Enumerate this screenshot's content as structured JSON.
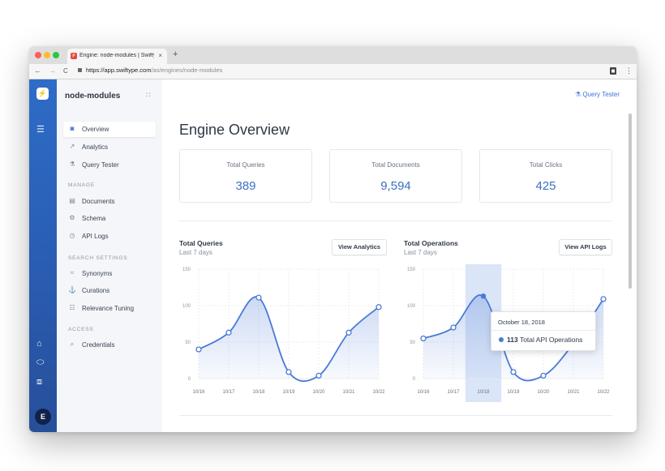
{
  "browser": {
    "tab_title": "Engine: node-modules | Swifty",
    "tab_favicon": "⚡",
    "tab_close": "×",
    "new_tab": "+",
    "back": "←",
    "forward": "→",
    "reload": "C",
    "url_host": "https://app.swiftype.com",
    "url_path": "/as/engines/node-modules",
    "menu": "⋮",
    "traffic_lights": [
      "#fd5f57",
      "#febc2e",
      "#28c840"
    ]
  },
  "rail": {
    "logo": "⚡",
    "menu_icon": "☰",
    "avatar": "E",
    "icons": [
      "home-icon",
      "chat-icon",
      "box-icon"
    ],
    "glyphs": [
      "⌂",
      "⬭",
      "⧈"
    ]
  },
  "sidebar": {
    "title": "node-modules",
    "grid_glyph": "∷",
    "items": [
      {
        "label": "Overview",
        "icon": "binoculars-icon",
        "glyph": "◙",
        "active": true
      },
      {
        "label": "Analytics",
        "icon": "analytics-icon",
        "glyph": "↗",
        "active": false
      },
      {
        "label": "Query Tester",
        "icon": "flask-icon",
        "glyph": "⚗",
        "active": false
      }
    ],
    "section_manage": "MANAGE",
    "manage": [
      {
        "label": "Documents",
        "icon": "table-icon",
        "glyph": "▤"
      },
      {
        "label": "Schema",
        "icon": "gear-icon",
        "glyph": "⚙"
      },
      {
        "label": "API Logs",
        "icon": "clock-icon",
        "glyph": "◷"
      }
    ],
    "section_search": "SEARCH SETTINGS",
    "search": [
      {
        "label": "Synonyms",
        "icon": "synonyms-icon",
        "glyph": "≈"
      },
      {
        "label": "Curations",
        "icon": "curations-icon",
        "glyph": "⚓"
      },
      {
        "label": "Relevance Tuning",
        "icon": "sliders-icon",
        "glyph": "☷"
      }
    ],
    "section_access": "ACCESS",
    "access": [
      {
        "label": "Credentials",
        "icon": "key-icon",
        "glyph": "⌕"
      }
    ]
  },
  "header": {
    "query_tester_link": "Query Tester",
    "query_tester_glyph": "⚗"
  },
  "main": {
    "page_title": "Engine Overview",
    "stats": [
      {
        "label": "Total Queries",
        "value": "389"
      },
      {
        "label": "Total Documents",
        "value": "9,594"
      },
      {
        "label": "Total Clicks",
        "value": "425"
      }
    ]
  },
  "charts": {
    "queries": {
      "title": "Total Queries",
      "subtitle": "Last 7 days",
      "button": "View Analytics"
    },
    "operations": {
      "title": "Total Operations",
      "subtitle": "Last 7 days",
      "button": "View API Logs"
    }
  },
  "tooltip": {
    "date": "October 18, 2018",
    "value": "113",
    "label": "Total API Operations"
  },
  "colors": {
    "accent": "#4a7ad6",
    "rail": "#2e6cc7",
    "highlight": "#cfdcf6"
  },
  "chart_data": [
    {
      "type": "area",
      "title": "Total Queries",
      "subtitle": "Last 7 days",
      "categories": [
        "10/16",
        "10/17",
        "10/18",
        "10/19",
        "10/20",
        "10/21",
        "10/22"
      ],
      "values": [
        40,
        63,
        111,
        9,
        4,
        63,
        98
      ],
      "ylim": [
        0,
        150
      ],
      "yticks": [
        0,
        50,
        100,
        150
      ],
      "grid": true
    },
    {
      "type": "area",
      "title": "Total Operations",
      "subtitle": "Last 7 days",
      "categories": [
        "10/16",
        "10/17",
        "10/18",
        "10/19",
        "10/20",
        "10/21",
        "10/22"
      ],
      "values": [
        55,
        70,
        113,
        9,
        4,
        48,
        109
      ],
      "ylim": [
        0,
        150
      ],
      "yticks": [
        0,
        50,
        100,
        150
      ],
      "grid": true,
      "highlight_category": "10/18"
    }
  ]
}
